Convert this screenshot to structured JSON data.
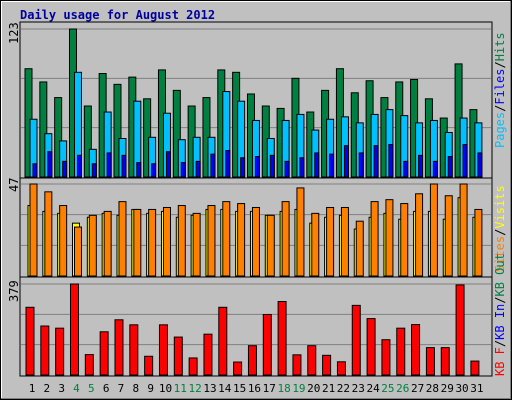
{
  "chart_data": [
    {
      "type": "bar",
      "title": "Daily usage for August 2012",
      "categories": [
        "1",
        "2",
        "3",
        "4",
        "5",
        "6",
        "7",
        "8",
        "9",
        "10",
        "11",
        "12",
        "13",
        "14",
        "15",
        "16",
        "17",
        "18",
        "19",
        "20",
        "21",
        "22",
        "23",
        "24",
        "25",
        "26",
        "27",
        "28",
        "29",
        "30",
        "31"
      ],
      "weekend_days": [
        "4",
        "5",
        "11",
        "12",
        "18",
        "19",
        "25",
        "26"
      ],
      "ymax_label": "123",
      "legend": [
        "Hits",
        "Files",
        "Pages"
      ],
      "series": [
        {
          "name": "Hits",
          "color": "#008040",
          "values": [
            90,
            79,
            66,
            123,
            59,
            86,
            77,
            83,
            65,
            89,
            72,
            59,
            66,
            89,
            87,
            69,
            59,
            57,
            82,
            54,
            72,
            90,
            70,
            80,
            66,
            79,
            81,
            65,
            49,
            94,
            56
          ]
        },
        {
          "name": "Files",
          "color": "#00c0ff",
          "values": [
            48,
            36,
            30,
            87,
            23,
            54,
            32,
            63,
            33,
            53,
            31,
            33,
            33,
            71,
            63,
            47,
            32,
            47,
            52,
            39,
            48,
            50,
            45,
            52,
            56,
            51,
            45,
            47,
            37,
            49,
            45
          ]
        },
        {
          "name": "Pages",
          "color": "#0000ff",
          "values": [
            11,
            21,
            13,
            18,
            11,
            20,
            18,
            12,
            11,
            21,
            12,
            13,
            19,
            22,
            16,
            17,
            18,
            13,
            16,
            20,
            19,
            26,
            20,
            26,
            27,
            13,
            18,
            13,
            17,
            27,
            20
          ]
        }
      ]
    },
    {
      "type": "bar",
      "categories": [
        "1",
        "2",
        "3",
        "4",
        "5",
        "6",
        "7",
        "8",
        "9",
        "10",
        "11",
        "12",
        "13",
        "14",
        "15",
        "16",
        "17",
        "18",
        "19",
        "20",
        "21",
        "22",
        "23",
        "24",
        "25",
        "26",
        "27",
        "28",
        "29",
        "30",
        "31"
      ],
      "ymax_label": "47",
      "legend": [
        "Visits",
        "Sites"
      ],
      "series": [
        {
          "name": "Visits",
          "color": "#ffff00",
          "values": [
            36,
            33,
            32,
            27,
            30,
            32,
            31,
            34,
            32,
            33,
            30,
            31,
            34,
            34,
            33,
            33,
            31,
            33,
            34,
            27,
            30,
            31,
            24,
            30,
            32,
            29,
            33,
            33,
            29,
            40,
            30
          ]
        },
        {
          "name": "Sites",
          "color": "#ff8000",
          "values": [
            47,
            43,
            36,
            25,
            31,
            33,
            38,
            34,
            34,
            35,
            36,
            32,
            36,
            38,
            37,
            35,
            31,
            38,
            45,
            32,
            35,
            35,
            28,
            38,
            39,
            37,
            42,
            47,
            41,
            47,
            34
          ]
        }
      ]
    },
    {
      "type": "bar",
      "categories": [
        "1",
        "2",
        "3",
        "4",
        "5",
        "6",
        "7",
        "8",
        "9",
        "10",
        "11",
        "12",
        "13",
        "14",
        "15",
        "16",
        "17",
        "18",
        "19",
        "20",
        "21",
        "22",
        "23",
        "24",
        "25",
        "26",
        "27",
        "28",
        "29",
        "30",
        "31"
      ],
      "ymax_label": "379",
      "legend": [
        "KB Out",
        "KB In",
        "KB F"
      ],
      "series": [
        {
          "name": "KB F",
          "color": "#ff0000",
          "values": [
            282,
            204,
            195,
            379,
            85,
            180,
            230,
            209,
            78,
            209,
            158,
            71,
            170,
            282,
            54,
            122,
            252,
            306,
            84,
            122,
            82,
            55,
            290,
            235,
            147,
            195,
            210,
            114,
            114,
            375,
            58
          ]
        }
      ]
    }
  ]
}
